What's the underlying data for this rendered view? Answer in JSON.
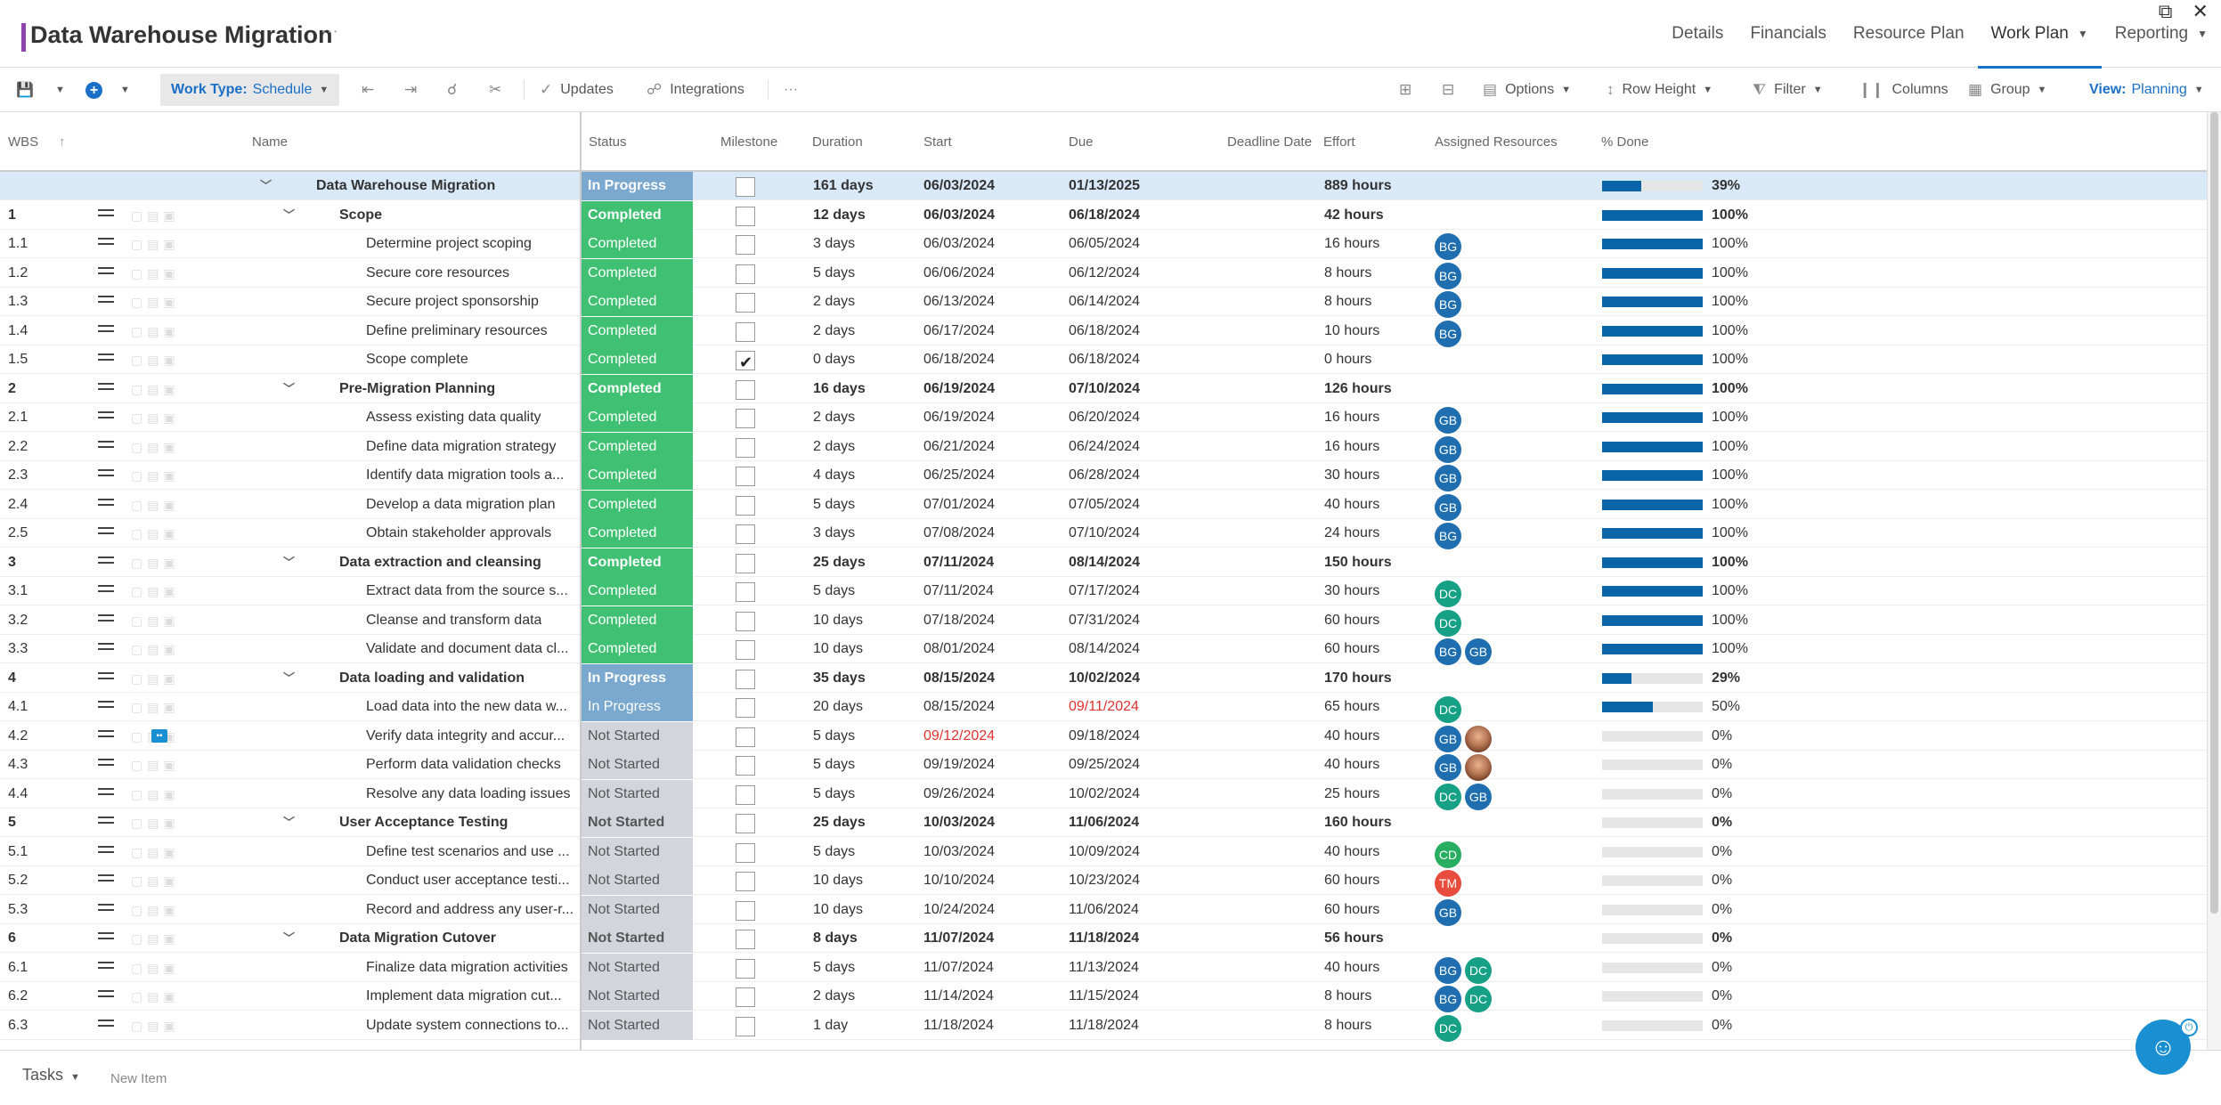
{
  "header": {
    "title": "Data Warehouse Migration",
    "more": "···",
    "window_controls": "⧉ ✕",
    "nav": [
      {
        "label": "Details",
        "dropdown": false
      },
      {
        "label": "Financials",
        "dropdown": false
      },
      {
        "label": "Resource Plan",
        "dropdown": false
      },
      {
        "label": "Work Plan",
        "dropdown": true
      },
      {
        "label": "Reporting",
        "dropdown": true
      }
    ]
  },
  "toolbar": {
    "save_icon": "💾",
    "add_icon": "+",
    "work_type_label": "Work Type:",
    "work_type_value": "Schedule",
    "outdent_icon": "⇤",
    "indent_icon": "⇥",
    "link_icon": "☌",
    "unlink_icon": "✂",
    "updates_icon": "✓",
    "updates": "Updates",
    "integrations_icon": "☍",
    "integrations": "Integrations",
    "more": "···",
    "expand_icon": "⊞",
    "collapse_icon": "⊟",
    "options_icon": "▤",
    "options": "Options",
    "row_height_icon": "↕",
    "row_height": "Row Height",
    "filter_icon": "⧨",
    "filter": "Filter",
    "columns_icon": "❙❙",
    "columns": "Columns",
    "group_icon": "▦",
    "group": "Group",
    "view_label": "View:",
    "view_value": "Planning"
  },
  "columns": {
    "wbs": "WBS",
    "sort_icon": "↑",
    "name": "Name",
    "status": "Status",
    "milestone": "Milestone",
    "duration": "Duration",
    "start": "Start",
    "due": "Due",
    "deadline": "Deadline Date",
    "effort": "Effort",
    "resources": "Assigned Resources",
    "pct": "% Done"
  },
  "tasks": [
    {
      "wbs": "",
      "name": "Data Warehouse Migration",
      "level": 0,
      "summary": true,
      "status": "In Progress",
      "milestone": false,
      "duration": "161 days",
      "start": "06/03/2024",
      "due": "01/13/2025",
      "effort": "889 hours",
      "resources": [],
      "pct": 39,
      "pct_label": "39%",
      "selected": true
    },
    {
      "wbs": "1",
      "name": "Scope",
      "level": 1,
      "summary": true,
      "status": "Completed",
      "milestone": false,
      "duration": "12 days",
      "start": "06/03/2024",
      "due": "06/18/2024",
      "effort": "42 hours",
      "resources": [],
      "pct": 100,
      "pct_label": "100%"
    },
    {
      "wbs": "1.1",
      "name": "Determine project scoping",
      "level": 2,
      "status": "Completed",
      "milestone": false,
      "duration": "3 days",
      "start": "06/03/2024",
      "due": "06/05/2024",
      "effort": "16 hours",
      "resources": [
        {
          "initials": "BG",
          "color": "#1f6fb0"
        }
      ],
      "pct": 100,
      "pct_label": "100%"
    },
    {
      "wbs": "1.2",
      "name": "Secure core resources",
      "level": 2,
      "status": "Completed",
      "milestone": false,
      "duration": "5 days",
      "start": "06/06/2024",
      "due": "06/12/2024",
      "effort": "8 hours",
      "resources": [
        {
          "initials": "BG",
          "color": "#1f6fb0"
        }
      ],
      "pct": 100,
      "pct_label": "100%"
    },
    {
      "wbs": "1.3",
      "name": "Secure project sponsorship",
      "level": 2,
      "status": "Completed",
      "milestone": false,
      "duration": "2 days",
      "start": "06/13/2024",
      "due": "06/14/2024",
      "effort": "8 hours",
      "resources": [
        {
          "initials": "BG",
          "color": "#1f6fb0"
        }
      ],
      "pct": 100,
      "pct_label": "100%"
    },
    {
      "wbs": "1.4",
      "name": "Define preliminary resources",
      "level": 2,
      "status": "Completed",
      "milestone": false,
      "duration": "2 days",
      "start": "06/17/2024",
      "due": "06/18/2024",
      "effort": "10 hours",
      "resources": [
        {
          "initials": "BG",
          "color": "#1f6fb0"
        }
      ],
      "pct": 100,
      "pct_label": "100%"
    },
    {
      "wbs": "1.5",
      "name": "Scope complete",
      "level": 2,
      "status": "Completed",
      "milestone": true,
      "duration": "0 days",
      "start": "06/18/2024",
      "due": "06/18/2024",
      "effort": "0 hours",
      "resources": [],
      "pct": 100,
      "pct_label": "100%"
    },
    {
      "wbs": "2",
      "name": "Pre-Migration Planning",
      "level": 1,
      "summary": true,
      "status": "Completed",
      "milestone": false,
      "duration": "16 days",
      "start": "06/19/2024",
      "due": "07/10/2024",
      "effort": "126 hours",
      "resources": [],
      "pct": 100,
      "pct_label": "100%"
    },
    {
      "wbs": "2.1",
      "name": "Assess existing data quality",
      "level": 2,
      "status": "Completed",
      "milestone": false,
      "duration": "2 days",
      "start": "06/19/2024",
      "due": "06/20/2024",
      "effort": "16 hours",
      "resources": [
        {
          "initials": "GB",
          "color": "#1f6fb0"
        }
      ],
      "pct": 100,
      "pct_label": "100%"
    },
    {
      "wbs": "2.2",
      "name": "Define data migration strategy",
      "level": 2,
      "status": "Completed",
      "milestone": false,
      "duration": "2 days",
      "start": "06/21/2024",
      "due": "06/24/2024",
      "effort": "16 hours",
      "resources": [
        {
          "initials": "GB",
          "color": "#1f6fb0"
        }
      ],
      "pct": 100,
      "pct_label": "100%"
    },
    {
      "wbs": "2.3",
      "name": "Identify data migration tools a...",
      "level": 2,
      "status": "Completed",
      "milestone": false,
      "duration": "4 days",
      "start": "06/25/2024",
      "due": "06/28/2024",
      "effort": "30 hours",
      "resources": [
        {
          "initials": "GB",
          "color": "#1f6fb0"
        }
      ],
      "pct": 100,
      "pct_label": "100%"
    },
    {
      "wbs": "2.4",
      "name": "Develop a data migration plan",
      "level": 2,
      "status": "Completed",
      "milestone": false,
      "duration": "5 days",
      "start": "07/01/2024",
      "due": "07/05/2024",
      "effort": "40 hours",
      "resources": [
        {
          "initials": "GB",
          "color": "#1f6fb0"
        }
      ],
      "pct": 100,
      "pct_label": "100%"
    },
    {
      "wbs": "2.5",
      "name": "Obtain stakeholder approvals",
      "level": 2,
      "status": "Completed",
      "milestone": false,
      "duration": "3 days",
      "start": "07/08/2024",
      "due": "07/10/2024",
      "effort": "24 hours",
      "resources": [
        {
          "initials": "BG",
          "color": "#1f6fb0"
        }
      ],
      "pct": 100,
      "pct_label": "100%"
    },
    {
      "wbs": "3",
      "name": "Data extraction and cleansing",
      "level": 1,
      "summary": true,
      "status": "Completed",
      "milestone": false,
      "duration": "25 days",
      "start": "07/11/2024",
      "due": "08/14/2024",
      "effort": "150 hours",
      "resources": [],
      "pct": 100,
      "pct_label": "100%"
    },
    {
      "wbs": "3.1",
      "name": "Extract data from the source s...",
      "level": 2,
      "status": "Completed",
      "milestone": false,
      "duration": "5 days",
      "start": "07/11/2024",
      "due": "07/17/2024",
      "effort": "30 hours",
      "resources": [
        {
          "initials": "DC",
          "color": "#16a085"
        }
      ],
      "pct": 100,
      "pct_label": "100%"
    },
    {
      "wbs": "3.2",
      "name": "Cleanse and transform data",
      "level": 2,
      "status": "Completed",
      "milestone": false,
      "duration": "10 days",
      "start": "07/18/2024",
      "due": "07/31/2024",
      "effort": "60 hours",
      "resources": [
        {
          "initials": "DC",
          "color": "#16a085"
        }
      ],
      "pct": 100,
      "pct_label": "100%"
    },
    {
      "wbs": "3.3",
      "name": "Validate and document data cl...",
      "level": 2,
      "status": "Completed",
      "milestone": false,
      "duration": "10 days",
      "start": "08/01/2024",
      "due": "08/14/2024",
      "effort": "60 hours",
      "resources": [
        {
          "initials": "BG",
          "color": "#1f6fb0"
        },
        {
          "initials": "GB",
          "color": "#1f6fb0"
        }
      ],
      "pct": 100,
      "pct_label": "100%"
    },
    {
      "wbs": "4",
      "name": "Data loading and validation",
      "level": 1,
      "summary": true,
      "status": "In Progress",
      "milestone": false,
      "duration": "35 days",
      "start": "08/15/2024",
      "due": "10/02/2024",
      "effort": "170 hours",
      "resources": [],
      "pct": 29,
      "pct_label": "29%"
    },
    {
      "wbs": "4.1",
      "name": "Load data into the new data w...",
      "level": 2,
      "status": "In Progress",
      "milestone": false,
      "duration": "20 days",
      "start": "08/15/2024",
      "due": "09/11/2024",
      "due_late": true,
      "effort": "65 hours",
      "resources": [
        {
          "initials": "DC",
          "color": "#16a085"
        }
      ],
      "pct": 50,
      "pct_label": "50%"
    },
    {
      "wbs": "4.2",
      "name": "Verify data integrity and accur...",
      "level": 2,
      "status": "Not Started",
      "milestone": false,
      "duration": "5 days",
      "start": "09/12/2024",
      "start_late": true,
      "due": "09/18/2024",
      "effort": "40 hours",
      "resources": [
        {
          "initials": "GB",
          "color": "#1f6fb0"
        },
        {
          "initials": "",
          "color": "#b57654",
          "photo": true
        }
      ],
      "pct": 0,
      "pct_label": "0%",
      "comment": true
    },
    {
      "wbs": "4.3",
      "name": "Perform data validation checks",
      "level": 2,
      "status": "Not Started",
      "milestone": false,
      "duration": "5 days",
      "start": "09/19/2024",
      "due": "09/25/2024",
      "effort": "40 hours",
      "resources": [
        {
          "initials": "GB",
          "color": "#1f6fb0"
        },
        {
          "initials": "",
          "color": "#b57654",
          "photo": true
        }
      ],
      "pct": 0,
      "pct_label": "0%"
    },
    {
      "wbs": "4.4",
      "name": "Resolve any data loading issues",
      "level": 2,
      "status": "Not Started",
      "milestone": false,
      "duration": "5 days",
      "start": "09/26/2024",
      "due": "10/02/2024",
      "effort": "25 hours",
      "resources": [
        {
          "initials": "DC",
          "color": "#16a085"
        },
        {
          "initials": "GB",
          "color": "#1f6fb0"
        }
      ],
      "pct": 0,
      "pct_label": "0%"
    },
    {
      "wbs": "5",
      "name": "User Acceptance Testing",
      "level": 1,
      "summary": true,
      "status": "Not Started",
      "milestone": false,
      "duration": "25 days",
      "start": "10/03/2024",
      "due": "11/06/2024",
      "effort": "160 hours",
      "resources": [],
      "pct": 0,
      "pct_label": "0%"
    },
    {
      "wbs": "5.1",
      "name": "Define test scenarios and use ...",
      "level": 2,
      "status": "Not Started",
      "milestone": false,
      "duration": "5 days",
      "start": "10/03/2024",
      "due": "10/09/2024",
      "effort": "40 hours",
      "resources": [
        {
          "initials": "CD",
          "color": "#27ae60"
        }
      ],
      "pct": 0,
      "pct_label": "0%"
    },
    {
      "wbs": "5.2",
      "name": "Conduct user acceptance testi...",
      "level": 2,
      "status": "Not Started",
      "milestone": false,
      "duration": "10 days",
      "start": "10/10/2024",
      "due": "10/23/2024",
      "effort": "60 hours",
      "resources": [
        {
          "initials": "TM",
          "color": "#e74c3c"
        }
      ],
      "pct": 0,
      "pct_label": "0%"
    },
    {
      "wbs": "5.3",
      "name": "Record and address any user-r...",
      "level": 2,
      "status": "Not Started",
      "milestone": false,
      "duration": "10 days",
      "start": "10/24/2024",
      "due": "11/06/2024",
      "effort": "60 hours",
      "resources": [
        {
          "initials": "GB",
          "color": "#1f6fb0"
        }
      ],
      "pct": 0,
      "pct_label": "0%"
    },
    {
      "wbs": "6",
      "name": "Data Migration Cutover",
      "level": 1,
      "summary": true,
      "status": "Not Started",
      "milestone": false,
      "duration": "8 days",
      "start": "11/07/2024",
      "due": "11/18/2024",
      "effort": "56 hours",
      "resources": [],
      "pct": 0,
      "pct_label": "0%"
    },
    {
      "wbs": "6.1",
      "name": "Finalize data migration activities",
      "level": 2,
      "status": "Not Started",
      "milestone": false,
      "duration": "5 days",
      "start": "11/07/2024",
      "due": "11/13/2024",
      "effort": "40 hours",
      "resources": [
        {
          "initials": "BG",
          "color": "#1f6fb0"
        },
        {
          "initials": "DC",
          "color": "#16a085"
        }
      ],
      "pct": 0,
      "pct_label": "0%"
    },
    {
      "wbs": "6.2",
      "name": "Implement data migration cut...",
      "level": 2,
      "status": "Not Started",
      "milestone": false,
      "duration": "2 days",
      "start": "11/14/2024",
      "due": "11/15/2024",
      "effort": "8 hours",
      "resources": [
        {
          "initials": "BG",
          "color": "#1f6fb0"
        },
        {
          "initials": "DC",
          "color": "#16a085"
        }
      ],
      "pct": 0,
      "pct_label": "0%"
    },
    {
      "wbs": "6.3",
      "name": "Update system connections to...",
      "level": 2,
      "status": "Not Started",
      "milestone": false,
      "duration": "1 day",
      "start": "11/18/2024",
      "due": "11/18/2024",
      "effort": "8 hours",
      "resources": [
        {
          "initials": "DC",
          "color": "#16a085"
        }
      ],
      "pct": 0,
      "pct_label": "0%"
    }
  ],
  "footer": {
    "tasks_label": "Tasks",
    "new_item": "New Item"
  },
  "widgets": {
    "help_icon": "☺",
    "power_icon": "⏻"
  }
}
